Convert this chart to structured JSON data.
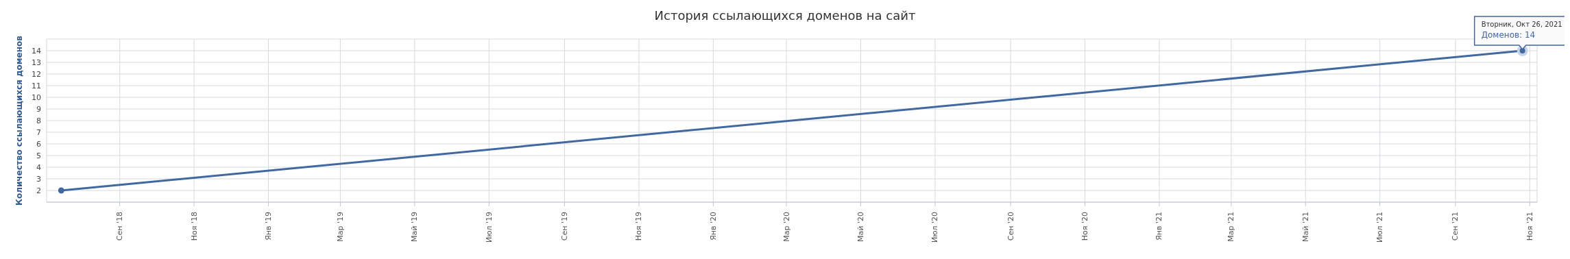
{
  "chart_data": {
    "type": "line",
    "title": "История ссылающихся доменов на сайт",
    "ylabel": "Количество ссылающихся доменов",
    "x": [
      "2018-07-15",
      "2021-10-26"
    ],
    "series": [
      {
        "color": "#4268a0",
        "values": [
          2,
          14
        ]
      }
    ],
    "marker": "circle",
    "line_style": "solid",
    "grid": true,
    "legend": false,
    "xlim": [
      "2018-07-03",
      "2021-11-07"
    ],
    "xticks": [
      {
        "value": "2018-09-01",
        "label": "Сен '18"
      },
      {
        "value": "2018-11-01",
        "label": "Ноя '18"
      },
      {
        "value": "2019-01-01",
        "label": "Янв '19"
      },
      {
        "value": "2019-03-01",
        "label": "Мар '19"
      },
      {
        "value": "2019-05-01",
        "label": "Май '19"
      },
      {
        "value": "2019-07-01",
        "label": "Июл '19"
      },
      {
        "value": "2019-09-01",
        "label": "Сен '19"
      },
      {
        "value": "2019-11-01",
        "label": "Ноя '19"
      },
      {
        "value": "2020-01-01",
        "label": "Янв '20"
      },
      {
        "value": "2020-03-01",
        "label": "Мар '20"
      },
      {
        "value": "2020-05-01",
        "label": "Май '20"
      },
      {
        "value": "2020-07-01",
        "label": "Июл '20"
      },
      {
        "value": "2020-09-01",
        "label": "Сен '20"
      },
      {
        "value": "2020-11-01",
        "label": "Ноя '20"
      },
      {
        "value": "2021-01-01",
        "label": "Янв '21"
      },
      {
        "value": "2021-03-01",
        "label": "Мар '21"
      },
      {
        "value": "2021-05-01",
        "label": "Май '21"
      },
      {
        "value": "2021-07-01",
        "label": "Июл '21"
      },
      {
        "value": "2021-09-01",
        "label": "Сен '21"
      },
      {
        "value": "2021-11-01",
        "label": "Ноя '21"
      }
    ],
    "ylim": [
      1,
      15
    ],
    "yticks": [
      {
        "value": 1,
        "label": null
      },
      2,
      3,
      4,
      5,
      6,
      7,
      8,
      9,
      10,
      11,
      12,
      13,
      14,
      {
        "value": 15,
        "label": null
      }
    ],
    "annotations": [
      "Вторник, Окт 26, 2021",
      {
        "text": "Доменов: 14",
        "x": "2021-10-26",
        "y": 14
      }
    ]
  }
}
